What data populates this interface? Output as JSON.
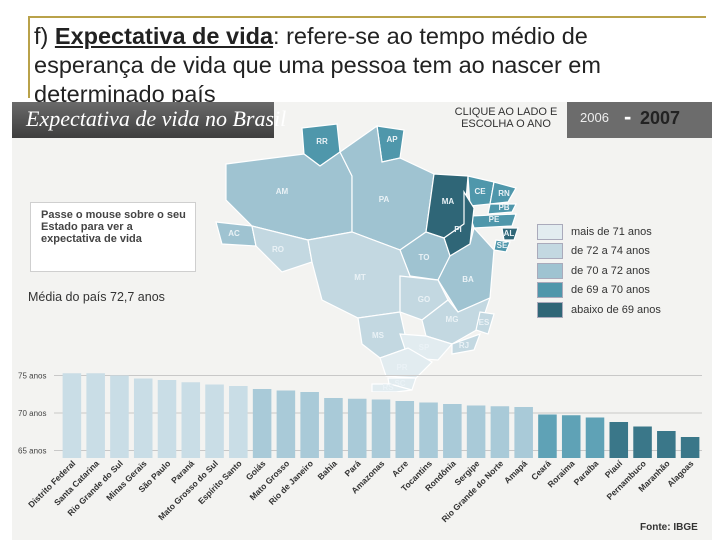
{
  "slide": {
    "prefix": "f) ",
    "term": "Expectativa de vida",
    "rest": ": refere-se ao tempo médio de esperança de vida que uma pessoa tem ao nascer em determinado país"
  },
  "infographic": {
    "title": "Expectativa de vida no Brasil",
    "clique": "CLIQUE AO LADO E ESCOLHA O ANO",
    "year_2006": "2006",
    "year_dash": "-",
    "year_2007": "2007",
    "hint": "Passe o mouse sobre o seu Estado para ver a expectativa de vida",
    "average": "Média do país 72,7 anos",
    "source": "Fonte: IBGE"
  },
  "legend": [
    {
      "label": "mais de 71 anos",
      "color": "#e2ecf0"
    },
    {
      "label": "de 72 a 74 anos",
      "color": "#c3d8e1"
    },
    {
      "label": "de 70 a 72 anos",
      "color": "#9fc3d1"
    },
    {
      "label": "de 69 a 70 anos",
      "color": "#4f97ab"
    },
    {
      "label": "abaixo de 69 anos",
      "color": "#2f6677"
    }
  ],
  "map_states": [
    {
      "code": "RR",
      "color": "#4f97ab"
    },
    {
      "code": "AP",
      "color": "#4f97ab"
    },
    {
      "code": "AM",
      "color": "#9fc3d1"
    },
    {
      "code": "PA",
      "color": "#9fc3d1"
    },
    {
      "code": "MA",
      "color": "#2f6677"
    },
    {
      "code": "CE",
      "color": "#4f97ab"
    },
    {
      "code": "RN",
      "color": "#4f97ab"
    },
    {
      "code": "PB",
      "color": "#4f97ab"
    },
    {
      "code": "PE",
      "color": "#4f97ab"
    },
    {
      "code": "AL",
      "color": "#2f6677"
    },
    {
      "code": "SE",
      "color": "#4f97ab"
    },
    {
      "code": "PI",
      "color": "#2f6677"
    },
    {
      "code": "AC",
      "color": "#9fc3d1"
    },
    {
      "code": "RO",
      "color": "#c3d8e1"
    },
    {
      "code": "TO",
      "color": "#9fc3d1"
    },
    {
      "code": "BA",
      "color": "#9fc3d1"
    },
    {
      "code": "MT",
      "color": "#c3d8e1"
    },
    {
      "code": "DF",
      "color": "#e2ecf0"
    },
    {
      "code": "GO",
      "color": "#c3d8e1"
    },
    {
      "code": "MG",
      "color": "#c3d8e1"
    },
    {
      "code": "ES",
      "color": "#c3d8e1"
    },
    {
      "code": "MS",
      "color": "#c3d8e1"
    },
    {
      "code": "SP",
      "color": "#e2ecf0"
    },
    {
      "code": "RJ",
      "color": "#c3d8e1"
    },
    {
      "code": "PR",
      "color": "#e2ecf0"
    },
    {
      "code": "SC",
      "color": "#e2ecf0"
    },
    {
      "code": "RS",
      "color": "#e2ecf0"
    }
  ],
  "chart_data": {
    "type": "bar",
    "ylim": [
      64,
      76
    ],
    "yticks": [
      {
        "value": 75,
        "label": "75 anos"
      },
      {
        "value": 70,
        "label": "70 anos"
      },
      {
        "value": 65,
        "label": "65 anos"
      }
    ],
    "categories": [
      "Distrito Federal",
      "Santa Catarina",
      "Rio Grande do Sul",
      "Minas Gerais",
      "São Paulo",
      "Paraná",
      "Mato Grosso do Sul",
      "Espírito Santo",
      "Goiás",
      "Mato Grosso",
      "Rio de Janeiro",
      "Bahia",
      "Pará",
      "Amazonas",
      "Acre",
      "Tocantins",
      "Rondônia",
      "Sergipe",
      "Rio Grande do Norte",
      "Amapá",
      "Ceará",
      "Roraima",
      "Paraíba",
      "Piauí",
      "Pernambuco",
      "Maranhão",
      "Alagoas"
    ],
    "values": [
      75.3,
      75.3,
      75.0,
      74.6,
      74.4,
      74.1,
      73.8,
      73.6,
      73.2,
      73.0,
      72.8,
      72.0,
      71.9,
      71.8,
      71.6,
      71.4,
      71.2,
      71.0,
      70.9,
      70.8,
      69.8,
      69.7,
      69.4,
      68.8,
      68.2,
      67.6,
      66.8
    ],
    "bar_colors": [
      "#c9dde6",
      "#c9dde6",
      "#c9dde6",
      "#c9dde6",
      "#c9dde6",
      "#c9dde6",
      "#c9dde6",
      "#c9dde6",
      "#a9cad8",
      "#a9cad8",
      "#a9cad8",
      "#a9cad8",
      "#a9cad8",
      "#a9cad8",
      "#a9cad8",
      "#a9cad8",
      "#a9cad8",
      "#a9cad8",
      "#a9cad8",
      "#a9cad8",
      "#5fa2b6",
      "#5fa2b6",
      "#5fa2b6",
      "#3a7789",
      "#3a7789",
      "#3a7789",
      "#3a7789"
    ]
  }
}
